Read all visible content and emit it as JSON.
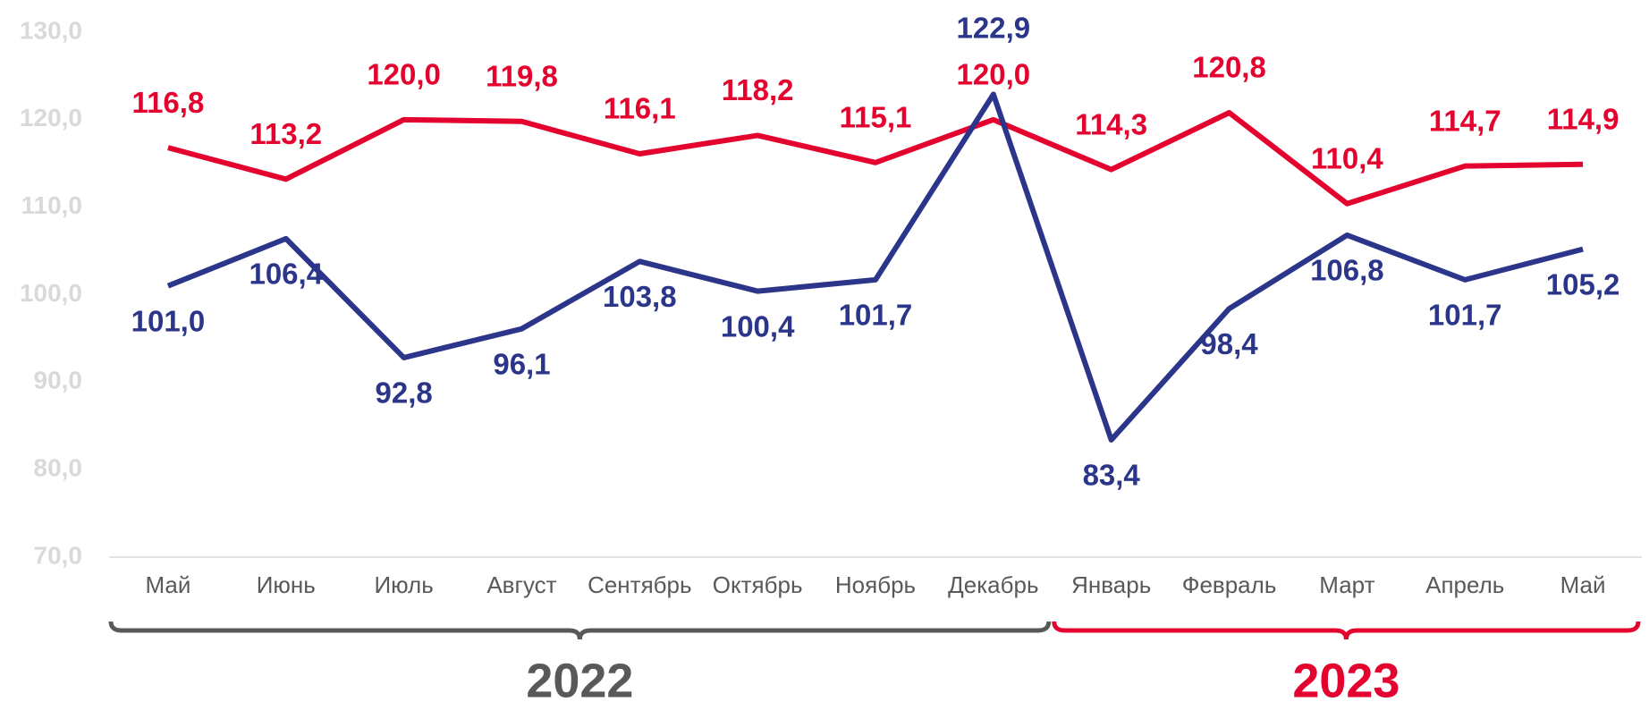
{
  "chart_data": {
    "type": "line",
    "categories": [
      "Май",
      "Июнь",
      "Июль",
      "Август",
      "Сентябрь",
      "Октябрь",
      "Ноябрь",
      "Декабрь",
      "Январь",
      "Февраль",
      "Март",
      "Апрель",
      "Май"
    ],
    "series": [
      {
        "color": "#e4032e",
        "label_position": "above",
        "values": [
          116.8,
          113.2,
          120.0,
          119.8,
          116.1,
          118.2,
          115.1,
          120.0,
          114.3,
          120.8,
          110.4,
          114.7,
          114.9
        ],
        "value_labels": [
          "116,8",
          "113,2",
          "120,0",
          "119,8",
          "116,1",
          "118,2",
          "115,1",
          "120,0",
          "114,3",
          "120,8",
          "110,4",
          "114,7",
          "114,9"
        ]
      },
      {
        "color": "#2b3589",
        "label_position": "below",
        "values": [
          101.0,
          106.4,
          92.8,
          96.1,
          103.8,
          100.4,
          101.7,
          122.9,
          83.4,
          98.4,
          106.8,
          101.7,
          105.2
        ],
        "value_labels": [
          "101,0",
          "106,4",
          "92,8",
          "96,1",
          "103,8",
          "100,4",
          "101,7",
          "122,9",
          "83,4",
          "98,4",
          "106,8",
          "101,7",
          "105,2"
        ]
      }
    ],
    "ylim": [
      70,
      130
    ],
    "yticks": [
      {
        "value": 70,
        "label": "70,0"
      },
      {
        "value": 80,
        "label": "80,0"
      },
      {
        "value": 90,
        "label": "90,0"
      },
      {
        "value": 100,
        "label": "100,0"
      },
      {
        "value": 110,
        "label": "110,0"
      },
      {
        "value": 120,
        "label": "120,0"
      },
      {
        "value": 130,
        "label": "130,0"
      }
    ],
    "groups": [
      {
        "label": "2022",
        "color": "#595959"
      },
      {
        "label": "2023",
        "color": "#e4032e"
      }
    ]
  }
}
